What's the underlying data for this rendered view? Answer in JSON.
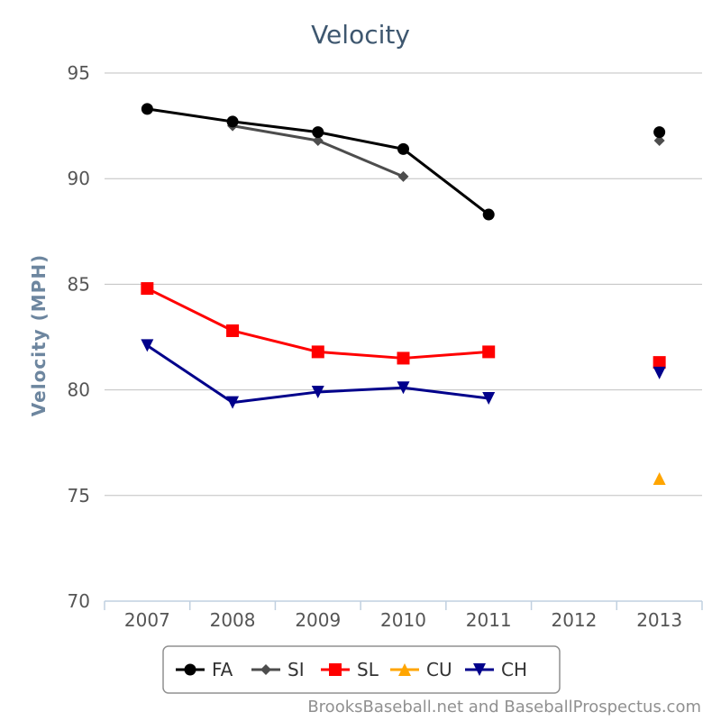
{
  "chart_data": {
    "type": "line",
    "title": "Velocity",
    "ylabel": "Velocity (MPH)",
    "xlabel": "",
    "categories": [
      "2007",
      "2008",
      "2009",
      "2010",
      "2011",
      "2012",
      "2013"
    ],
    "ylim": [
      70,
      95
    ],
    "yticks": [
      70,
      75,
      80,
      85,
      90,
      95
    ],
    "grid": "horizontal",
    "legend_position": "bottom",
    "series": [
      {
        "name": "FA",
        "color": "#000000",
        "marker": "circle",
        "values": [
          93.3,
          92.7,
          92.2,
          91.4,
          88.3,
          null,
          92.2
        ]
      },
      {
        "name": "SI",
        "color": "#4d4d4d",
        "marker": "diamond",
        "values": [
          null,
          92.5,
          91.8,
          90.1,
          null,
          null,
          91.8
        ]
      },
      {
        "name": "SL",
        "color": "#ff0000",
        "marker": "square",
        "values": [
          84.8,
          82.8,
          81.8,
          81.5,
          81.8,
          null,
          81.3
        ]
      },
      {
        "name": "CU",
        "color": "#ffa500",
        "marker": "triangle",
        "values": [
          null,
          null,
          null,
          null,
          null,
          null,
          75.8
        ]
      },
      {
        "name": "CH",
        "color": "#00008b",
        "marker": "triangle-down",
        "values": [
          82.1,
          79.4,
          79.9,
          80.1,
          79.6,
          null,
          80.8
        ]
      }
    ]
  },
  "credit": "BrooksBaseball.net and BaseballProspectus.com"
}
